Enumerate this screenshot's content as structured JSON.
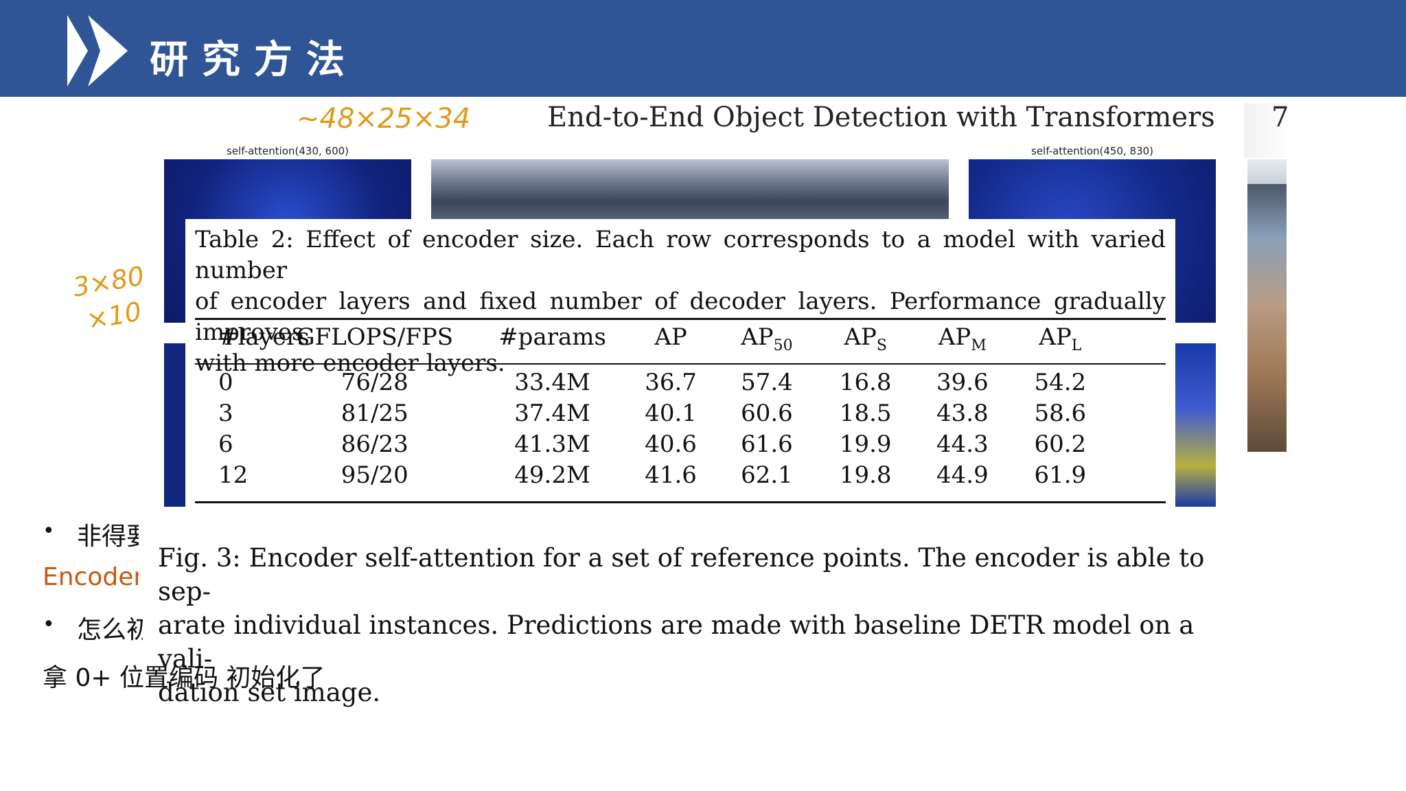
{
  "slide": {
    "title": "研究方法"
  },
  "figure": {
    "page_header": "End-to-End Object Detection with Transformers",
    "page_number": "7",
    "label_left": "self-attention(430, 600)",
    "label_right": "self-attention(450, 830)",
    "fig_caption_lines": [
      "Fig. 3: Encoder self-attention for a set of reference points. The encoder is able to sep-",
      "arate individual instances. Predictions are made with baseline DETR model on a vali-",
      "dation set image."
    ]
  },
  "annotations": {
    "top": "~48×25×34",
    "left_line1": "3×80",
    "left_line2": "×10"
  },
  "table": {
    "caption_lines": [
      "Table 2: Effect of encoder size. Each row corresponds to a model with varied number",
      "of encoder layers and fixed number of decoder layers. Performance gradually improves",
      "with more encoder layers."
    ],
    "headers": [
      {
        "base": "#layers",
        "sub": ""
      },
      {
        "base": "GFLOPS/FPS",
        "sub": ""
      },
      {
        "base": "#params",
        "sub": ""
      },
      {
        "base": "AP",
        "sub": ""
      },
      {
        "base": "AP",
        "sub": "50"
      },
      {
        "base": "AP",
        "sub": "S"
      },
      {
        "base": "AP",
        "sub": "M"
      },
      {
        "base": "AP",
        "sub": "L"
      }
    ],
    "rows": [
      [
        "0",
        "76/28",
        "33.4M",
        "36.7",
        "57.4",
        "16.8",
        "39.6",
        "54.2"
      ],
      [
        "3",
        "81/25",
        "37.4M",
        "40.1",
        "60.6",
        "18.5",
        "43.8",
        "58.6"
      ],
      [
        "6",
        "86/23",
        "41.3M",
        "40.6",
        "61.6",
        "19.9",
        "44.3",
        "60.2"
      ],
      [
        "12",
        "95/20",
        "49.2M",
        "41.6",
        "62.1",
        "19.8",
        "44.9",
        "61.9"
      ]
    ]
  },
  "notes": {
    "bullet1": "非得要",
    "line2": "Encoder",
    "bullet3": "怎么初",
    "line4": "拿 0+ 位置编码 初始化了"
  }
}
